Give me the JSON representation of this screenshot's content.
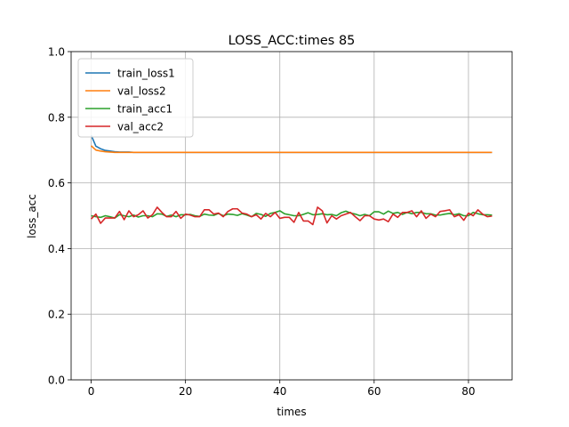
{
  "chart_data": {
    "type": "line",
    "title": "LOSS_ACC:times 85",
    "xlabel": "times",
    "ylabel": "loss_acc",
    "xlim": [
      -4.25,
      89.25
    ],
    "ylim": [
      0.0,
      1.0
    ],
    "xticks": [
      0,
      20,
      40,
      60,
      80
    ],
    "yticks": [
      0.0,
      0.2,
      0.4,
      0.6,
      0.8,
      1.0
    ],
    "ytick_labels": [
      "0.0",
      "0.2",
      "0.4",
      "0.6",
      "0.8",
      "1.0"
    ],
    "grid": true,
    "legend": "upper-left",
    "x": [
      0,
      1,
      2,
      3,
      4,
      5,
      6,
      7,
      8,
      9,
      10,
      11,
      12,
      13,
      14,
      15,
      16,
      17,
      18,
      19,
      20,
      21,
      22,
      23,
      24,
      25,
      26,
      27,
      28,
      29,
      30,
      31,
      32,
      33,
      34,
      35,
      36,
      37,
      38,
      39,
      40,
      41,
      42,
      43,
      44,
      45,
      46,
      47,
      48,
      49,
      50,
      51,
      52,
      53,
      54,
      55,
      56,
      57,
      58,
      59,
      60,
      61,
      62,
      63,
      64,
      65,
      66,
      67,
      68,
      69,
      70,
      71,
      72,
      73,
      74,
      75,
      76,
      77,
      78,
      79,
      80,
      81,
      82,
      83,
      84,
      85
    ],
    "series": [
      {
        "name": "train_loss1",
        "color": "#1f77b4",
        "values": [
          0.745,
          0.712,
          0.704,
          0.699,
          0.697,
          0.695,
          0.694,
          0.694,
          0.694,
          0.693,
          0.693,
          0.693,
          0.693,
          0.693,
          0.693,
          0.693,
          0.693,
          0.693,
          0.693,
          0.693,
          0.693,
          0.693,
          0.693,
          0.693,
          0.693,
          0.693,
          0.693,
          0.693,
          0.693,
          0.693,
          0.693,
          0.693,
          0.693,
          0.693,
          0.693,
          0.693,
          0.693,
          0.693,
          0.693,
          0.693,
          0.693,
          0.693,
          0.693,
          0.693,
          0.693,
          0.693,
          0.693,
          0.693,
          0.693,
          0.693,
          0.693,
          0.693,
          0.693,
          0.693,
          0.693,
          0.693,
          0.693,
          0.693,
          0.693,
          0.693,
          0.693,
          0.693,
          0.693,
          0.693,
          0.693,
          0.693,
          0.693,
          0.693,
          0.693,
          0.693,
          0.693,
          0.693,
          0.693,
          0.693,
          0.693,
          0.693,
          0.693,
          0.693,
          0.693,
          0.693,
          0.693,
          0.693,
          0.693,
          0.693,
          0.693,
          0.693
        ]
      },
      {
        "name": "val_loss2",
        "color": "#ff7f0e",
        "values": [
          0.713,
          0.7,
          0.697,
          0.695,
          0.694,
          0.693,
          0.693,
          0.693,
          0.693,
          0.693,
          0.693,
          0.693,
          0.693,
          0.693,
          0.693,
          0.693,
          0.693,
          0.693,
          0.693,
          0.693,
          0.693,
          0.693,
          0.693,
          0.693,
          0.693,
          0.693,
          0.693,
          0.693,
          0.693,
          0.693,
          0.693,
          0.693,
          0.693,
          0.693,
          0.693,
          0.693,
          0.693,
          0.693,
          0.693,
          0.693,
          0.693,
          0.693,
          0.693,
          0.693,
          0.693,
          0.693,
          0.693,
          0.693,
          0.693,
          0.693,
          0.693,
          0.693,
          0.693,
          0.693,
          0.693,
          0.693,
          0.693,
          0.693,
          0.693,
          0.693,
          0.693,
          0.693,
          0.693,
          0.693,
          0.693,
          0.693,
          0.693,
          0.693,
          0.693,
          0.693,
          0.693,
          0.693,
          0.693,
          0.693,
          0.693,
          0.693,
          0.693,
          0.693,
          0.693,
          0.693,
          0.693,
          0.693,
          0.693,
          0.693,
          0.693,
          0.693
        ]
      },
      {
        "name": "train_acc1",
        "color": "#2ca02c",
        "values": [
          0.5,
          0.497,
          0.495,
          0.5,
          0.497,
          0.493,
          0.503,
          0.5,
          0.497,
          0.502,
          0.496,
          0.5,
          0.5,
          0.497,
          0.506,
          0.505,
          0.498,
          0.502,
          0.497,
          0.503,
          0.503,
          0.504,
          0.5,
          0.498,
          0.505,
          0.502,
          0.501,
          0.507,
          0.5,
          0.505,
          0.504,
          0.501,
          0.506,
          0.502,
          0.497,
          0.507,
          0.504,
          0.498,
          0.507,
          0.51,
          0.515,
          0.506,
          0.503,
          0.5,
          0.5,
          0.504,
          0.509,
          0.503,
          0.504,
          0.506,
          0.503,
          0.504,
          0.5,
          0.509,
          0.514,
          0.508,
          0.505,
          0.5,
          0.504,
          0.5,
          0.512,
          0.512,
          0.505,
          0.514,
          0.507,
          0.51,
          0.504,
          0.51,
          0.506,
          0.51,
          0.51,
          0.506,
          0.506,
          0.502,
          0.502,
          0.505,
          0.507,
          0.503,
          0.506,
          0.5,
          0.5,
          0.51,
          0.506,
          0.503,
          0.503,
          0.502
        ]
      },
      {
        "name": "val_acc2",
        "color": "#d62728",
        "values": [
          0.49,
          0.505,
          0.477,
          0.493,
          0.493,
          0.493,
          0.513,
          0.488,
          0.515,
          0.497,
          0.503,
          0.515,
          0.493,
          0.503,
          0.526,
          0.51,
          0.497,
          0.497,
          0.513,
          0.492,
          0.505,
          0.502,
          0.497,
          0.497,
          0.518,
          0.518,
          0.505,
          0.508,
          0.497,
          0.513,
          0.521,
          0.521,
          0.508,
          0.505,
          0.497,
          0.503,
          0.49,
          0.507,
          0.497,
          0.51,
          0.492,
          0.495,
          0.495,
          0.48,
          0.51,
          0.484,
          0.484,
          0.473,
          0.526,
          0.515,
          0.478,
          0.5,
          0.49,
          0.5,
          0.505,
          0.51,
          0.497,
          0.485,
          0.5,
          0.5,
          0.49,
          0.487,
          0.49,
          0.482,
          0.505,
          0.495,
          0.51,
          0.51,
          0.515,
          0.497,
          0.515,
          0.492,
          0.505,
          0.497,
          0.513,
          0.515,
          0.518,
          0.497,
          0.503,
          0.486,
          0.508,
          0.5,
          0.518,
          0.505,
          0.497,
          0.499
        ]
      }
    ]
  }
}
